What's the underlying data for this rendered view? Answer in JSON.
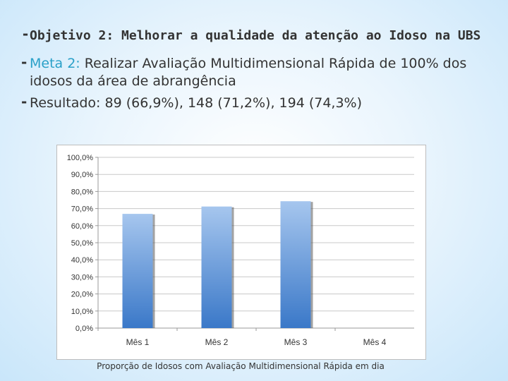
{
  "bullets": [
    {
      "text": "Objetivo 2: Melhorar a qualidade da atenção ao Idoso na UBS"
    },
    {
      "label": "Meta 2:",
      "text": "Realizar Avaliação Multidimensional Rápida de 100% dos idosos da área de abrangência"
    },
    {
      "label": "Resultado:",
      "text": "89 (66,9%), 148 (71,2%), 194 (74,3%)"
    }
  ],
  "colors": {
    "accent": "#2aa0c8",
    "bar_top": "#a6c6ee",
    "bar_bottom": "#3a78c8"
  },
  "chart_data": {
    "type": "bar",
    "categories": [
      "Mês 1",
      "Mês 2",
      "Mês 3",
      "Mês 4"
    ],
    "values": [
      66.9,
      71.2,
      74.3,
      0
    ],
    "ylim": [
      0,
      100
    ],
    "ytick_labels": [
      "0,0%",
      "10,0%",
      "20,0%",
      "30,0%",
      "40,0%",
      "50,0%",
      "60,0%",
      "70,0%",
      "80,0%",
      "90,0%",
      "100,0%"
    ],
    "grid": true,
    "caption": "Proporção de Idosos com Avaliação Multidimensional Rápida em dia"
  }
}
